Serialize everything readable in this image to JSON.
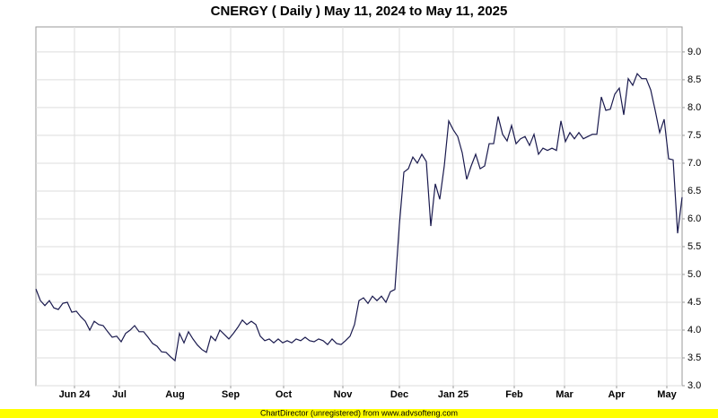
{
  "chart_data": {
    "type": "line",
    "title": "CNERGY ( Daily ) May 11, 2024 to May 11, 2025",
    "footer": "ChartDirector (unregistered) from www.advsofteng.com",
    "color": "#1a1a4e",
    "grid": true,
    "xlim": [
      0,
      144
    ],
    "xticks": [
      {
        "value": 8.6,
        "label": "Jun 24"
      },
      {
        "value": 18.6,
        "label": "Jul"
      },
      {
        "value": 31,
        "label": "Aug"
      },
      {
        "value": 43.4,
        "label": "Sep"
      },
      {
        "value": 55.2,
        "label": "Oct"
      },
      {
        "value": 68.4,
        "label": "Nov"
      },
      {
        "value": 81,
        "label": "Dec"
      },
      {
        "value": 93,
        "label": "Jan 25"
      },
      {
        "value": 106.6,
        "label": "Feb"
      },
      {
        "value": 117.8,
        "label": "Mar"
      },
      {
        "value": 129.4,
        "label": "Apr"
      },
      {
        "value": 140.6,
        "label": "May"
      }
    ],
    "ylim": [
      3,
      9.45
    ],
    "yticks": [
      {
        "value": 3,
        "label": "3.0"
      },
      3.5,
      {
        "value": 4,
        "label": "4.0"
      },
      4.5,
      {
        "value": 5,
        "label": "5.0"
      },
      5.5,
      {
        "value": 6,
        "label": "6.0"
      },
      6.5,
      {
        "value": 7,
        "label": "7.0"
      },
      7.5,
      {
        "value": 8,
        "label": "8.0"
      },
      8.5,
      {
        "value": 9,
        "label": "9.0"
      }
    ],
    "values": [
      4.74,
      4.53,
      4.44,
      4.53,
      4.4,
      4.37,
      4.48,
      4.5,
      4.32,
      4.34,
      4.24,
      4.16,
      4.0,
      4.16,
      4.1,
      4.08,
      3.97,
      3.87,
      3.89,
      3.79,
      3.94,
      4.0,
      4.08,
      3.97,
      3.97,
      3.87,
      3.76,
      3.71,
      3.61,
      3.6,
      3.52,
      3.45,
      3.94,
      3.77,
      3.97,
      3.84,
      3.73,
      3.65,
      3.6,
      3.89,
      3.81,
      4.0,
      3.92,
      3.84,
      3.94,
      4.05,
      4.18,
      4.1,
      4.16,
      4.1,
      3.89,
      3.81,
      3.84,
      3.77,
      3.84,
      3.77,
      3.81,
      3.77,
      3.84,
      3.81,
      3.87,
      3.81,
      3.79,
      3.84,
      3.81,
      3.74,
      3.84,
      3.76,
      3.74,
      3.81,
      3.89,
      4.1,
      4.53,
      4.58,
      4.48,
      4.61,
      4.53,
      4.61,
      4.5,
      4.69,
      4.73,
      5.9,
      6.84,
      6.9,
      7.11,
      7.0,
      7.16,
      7.03,
      5.87,
      6.63,
      6.35,
      6.95,
      7.76,
      7.6,
      7.48,
      7.19,
      6.71,
      6.95,
      7.16,
      6.9,
      6.95,
      7.35,
      7.35,
      7.84,
      7.52,
      7.4,
      7.68,
      7.35,
      7.44,
      7.48,
      7.32,
      7.52,
      7.16,
      7.27,
      7.23,
      7.27,
      7.23,
      7.76,
      7.39,
      7.55,
      7.44,
      7.55,
      7.44,
      7.48,
      7.52,
      7.52,
      8.19,
      7.95,
      7.97,
      8.24,
      8.35,
      7.87,
      8.52,
      8.4,
      8.61,
      8.52,
      8.52,
      8.32,
      7.95,
      7.55,
      7.79,
      7.08,
      7.06,
      5.74,
      6.39
    ]
  }
}
